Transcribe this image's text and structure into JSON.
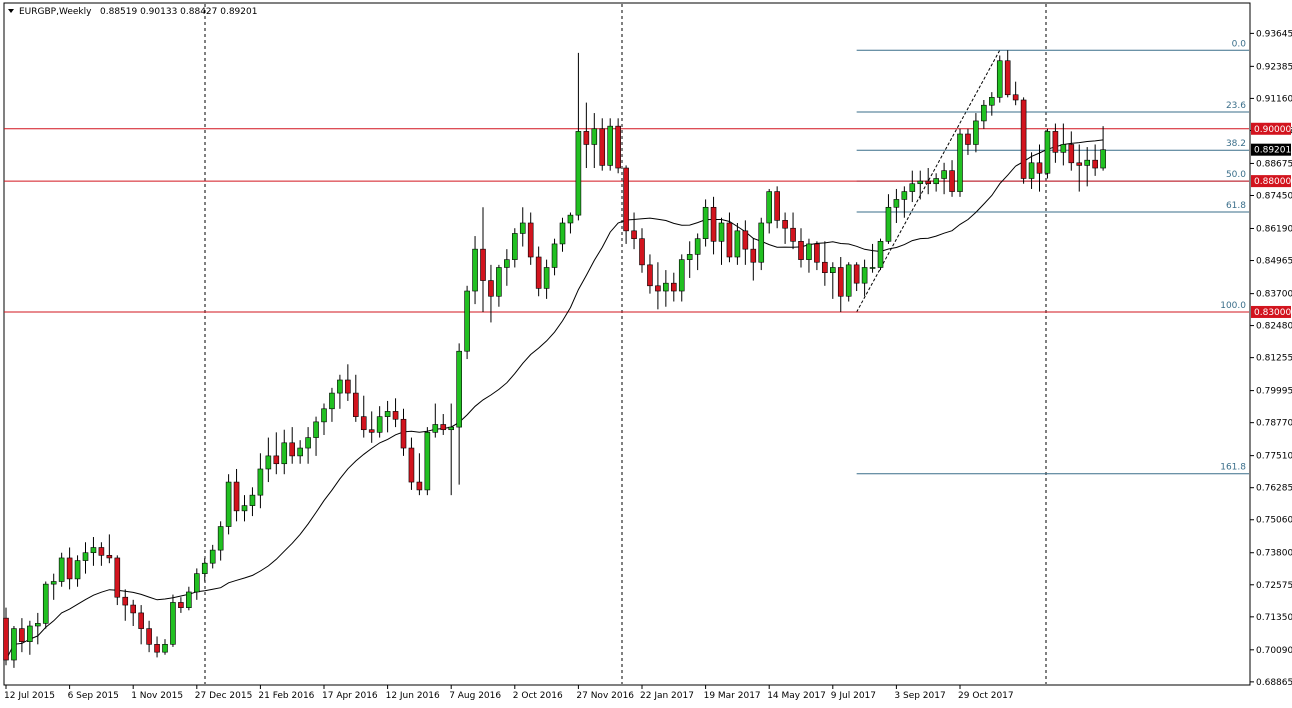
{
  "header": {
    "symbol": "EURGBP,Weekly",
    "ohlc": "0.88519 0.90133 0.88427 0.89201"
  },
  "colors": {
    "bull": "#21c021",
    "bear": "#d2141e",
    "wick": "#000000",
    "hline": "#d2141e",
    "fib": "#3a6e8a",
    "ma": "#000000"
  },
  "chart_data": {
    "type": "candlestick",
    "symbol": "EURGBP",
    "timeframe": "Weekly",
    "ylim": [
      0.6886,
      0.9408
    ],
    "y_ticks": [
      "0.93645",
      "0.92385",
      "0.91160",
      "0.89935",
      "0.88675",
      "0.87450",
      "0.86190",
      "0.84965",
      "0.83700",
      "0.82480",
      "0.81255",
      "0.79995",
      "0.78770",
      "0.77510",
      "0.76285",
      "0.75060",
      "0.73800",
      "0.72575",
      "0.71350",
      "0.70090",
      "0.68865"
    ],
    "x_ticks": [
      "12 Jul 2015",
      "6 Sep 2015",
      "1 Nov 2015",
      "27 Dec 2015",
      "21 Feb 2016",
      "17 Apr 2016",
      "12 Jun 2016",
      "7 Aug 2016",
      "2 Oct 2016",
      "27 Nov 2016",
      "22 Jan 2017",
      "19 Mar 2017",
      "14 May 2017",
      "9 Jul 2017",
      "3 Sep 2017",
      "29 Oct 2017"
    ],
    "horizontal_levels": [
      {
        "price": 0.9,
        "label": "0.90000"
      },
      {
        "price": 0.88,
        "label": "0.88000"
      },
      {
        "price": 0.83,
        "label": "0.83000"
      }
    ],
    "current_price": {
      "price": 0.89201,
      "label": "0.89201"
    },
    "fibonacci": {
      "start": {
        "bar": 107,
        "price": 0.83
      },
      "end": {
        "bar": 125,
        "price": 0.93
      },
      "levels": [
        {
          "ratio": 0.0,
          "label": "0.0"
        },
        {
          "ratio": 0.236,
          "label": "23.6"
        },
        {
          "ratio": 0.382,
          "label": "38.2"
        },
        {
          "ratio": 0.5,
          "label": "50.0"
        },
        {
          "ratio": 0.618,
          "label": "61.8"
        },
        {
          "ratio": 1.0,
          "label": "100.0"
        },
        {
          "ratio": 1.618,
          "label": "161.8"
        }
      ]
    },
    "ma": {
      "period": 20
    },
    "candles": [
      {
        "o": 0.713,
        "h": 0.717,
        "l": 0.695,
        "c": 0.697
      },
      {
        "o": 0.697,
        "h": 0.71,
        "l": 0.694,
        "c": 0.709
      },
      {
        "o": 0.709,
        "h": 0.713,
        "l": 0.7,
        "c": 0.704
      },
      {
        "o": 0.704,
        "h": 0.712,
        "l": 0.699,
        "c": 0.71
      },
      {
        "o": 0.71,
        "h": 0.715,
        "l": 0.703,
        "c": 0.711
      },
      {
        "o": 0.711,
        "h": 0.727,
        "l": 0.709,
        "c": 0.726
      },
      {
        "o": 0.726,
        "h": 0.73,
        "l": 0.72,
        "c": 0.727
      },
      {
        "o": 0.727,
        "h": 0.738,
        "l": 0.725,
        "c": 0.736
      },
      {
        "o": 0.736,
        "h": 0.74,
        "l": 0.724,
        "c": 0.728
      },
      {
        "o": 0.728,
        "h": 0.737,
        "l": 0.725,
        "c": 0.735
      },
      {
        "o": 0.735,
        "h": 0.742,
        "l": 0.73,
        "c": 0.738
      },
      {
        "o": 0.738,
        "h": 0.744,
        "l": 0.733,
        "c": 0.74
      },
      {
        "o": 0.74,
        "h": 0.742,
        "l": 0.733,
        "c": 0.737
      },
      {
        "o": 0.737,
        "h": 0.745,
        "l": 0.734,
        "c": 0.736
      },
      {
        "o": 0.736,
        "h": 0.737,
        "l": 0.718,
        "c": 0.721
      },
      {
        "o": 0.721,
        "h": 0.724,
        "l": 0.712,
        "c": 0.718
      },
      {
        "o": 0.718,
        "h": 0.72,
        "l": 0.71,
        "c": 0.715
      },
      {
        "o": 0.715,
        "h": 0.718,
        "l": 0.703,
        "c": 0.709
      },
      {
        "o": 0.709,
        "h": 0.712,
        "l": 0.7,
        "c": 0.703
      },
      {
        "o": 0.703,
        "h": 0.706,
        "l": 0.698,
        "c": 0.7
      },
      {
        "o": 0.7,
        "h": 0.705,
        "l": 0.699,
        "c": 0.703
      },
      {
        "o": 0.703,
        "h": 0.722,
        "l": 0.702,
        "c": 0.719
      },
      {
        "o": 0.719,
        "h": 0.721,
        "l": 0.715,
        "c": 0.717
      },
      {
        "o": 0.717,
        "h": 0.725,
        "l": 0.716,
        "c": 0.723
      },
      {
        "o": 0.723,
        "h": 0.732,
        "l": 0.72,
        "c": 0.73
      },
      {
        "o": 0.73,
        "h": 0.736,
        "l": 0.727,
        "c": 0.734
      },
      {
        "o": 0.734,
        "h": 0.741,
        "l": 0.732,
        "c": 0.739
      },
      {
        "o": 0.739,
        "h": 0.75,
        "l": 0.735,
        "c": 0.748
      },
      {
        "o": 0.748,
        "h": 0.768,
        "l": 0.745,
        "c": 0.765
      },
      {
        "o": 0.765,
        "h": 0.77,
        "l": 0.75,
        "c": 0.754
      },
      {
        "o": 0.754,
        "h": 0.76,
        "l": 0.75,
        "c": 0.756
      },
      {
        "o": 0.756,
        "h": 0.763,
        "l": 0.752,
        "c": 0.76
      },
      {
        "o": 0.76,
        "h": 0.776,
        "l": 0.755,
        "c": 0.77
      },
      {
        "o": 0.77,
        "h": 0.782,
        "l": 0.765,
        "c": 0.775
      },
      {
        "o": 0.775,
        "h": 0.784,
        "l": 0.768,
        "c": 0.772
      },
      {
        "o": 0.772,
        "h": 0.785,
        "l": 0.768,
        "c": 0.78
      },
      {
        "o": 0.78,
        "h": 0.786,
        "l": 0.772,
        "c": 0.775
      },
      {
        "o": 0.775,
        "h": 0.781,
        "l": 0.772,
        "c": 0.778
      },
      {
        "o": 0.778,
        "h": 0.786,
        "l": 0.772,
        "c": 0.782
      },
      {
        "o": 0.782,
        "h": 0.79,
        "l": 0.775,
        "c": 0.788
      },
      {
        "o": 0.788,
        "h": 0.795,
        "l": 0.783,
        "c": 0.793
      },
      {
        "o": 0.793,
        "h": 0.801,
        "l": 0.788,
        "c": 0.799
      },
      {
        "o": 0.799,
        "h": 0.806,
        "l": 0.793,
        "c": 0.804
      },
      {
        "o": 0.804,
        "h": 0.81,
        "l": 0.796,
        "c": 0.799
      },
      {
        "o": 0.799,
        "h": 0.806,
        "l": 0.788,
        "c": 0.79
      },
      {
        "o": 0.79,
        "h": 0.798,
        "l": 0.782,
        "c": 0.785
      },
      {
        "o": 0.785,
        "h": 0.792,
        "l": 0.78,
        "c": 0.784
      },
      {
        "o": 0.784,
        "h": 0.794,
        "l": 0.782,
        "c": 0.79
      },
      {
        "o": 0.79,
        "h": 0.796,
        "l": 0.784,
        "c": 0.792
      },
      {
        "o": 0.792,
        "h": 0.797,
        "l": 0.786,
        "c": 0.789
      },
      {
        "o": 0.789,
        "h": 0.793,
        "l": 0.775,
        "c": 0.778
      },
      {
        "o": 0.778,
        "h": 0.782,
        "l": 0.762,
        "c": 0.765
      },
      {
        "o": 0.765,
        "h": 0.776,
        "l": 0.76,
        "c": 0.762
      },
      {
        "o": 0.762,
        "h": 0.786,
        "l": 0.76,
        "c": 0.784
      },
      {
        "o": 0.784,
        "h": 0.795,
        "l": 0.782,
        "c": 0.787
      },
      {
        "o": 0.787,
        "h": 0.791,
        "l": 0.783,
        "c": 0.785
      },
      {
        "o": 0.785,
        "h": 0.795,
        "l": 0.76,
        "c": 0.786
      },
      {
        "o": 0.786,
        "h": 0.818,
        "l": 0.764,
        "c": 0.815
      },
      {
        "o": 0.815,
        "h": 0.84,
        "l": 0.812,
        "c": 0.838
      },
      {
        "o": 0.838,
        "h": 0.859,
        "l": 0.833,
        "c": 0.854
      },
      {
        "o": 0.854,
        "h": 0.87,
        "l": 0.83,
        "c": 0.842
      },
      {
        "o": 0.842,
        "h": 0.848,
        "l": 0.826,
        "c": 0.836
      },
      {
        "o": 0.836,
        "h": 0.848,
        "l": 0.832,
        "c": 0.847
      },
      {
        "o": 0.847,
        "h": 0.854,
        "l": 0.84,
        "c": 0.85
      },
      {
        "o": 0.85,
        "h": 0.862,
        "l": 0.847,
        "c": 0.86
      },
      {
        "o": 0.86,
        "h": 0.87,
        "l": 0.855,
        "c": 0.864
      },
      {
        "o": 0.864,
        "h": 0.868,
        "l": 0.848,
        "c": 0.851
      },
      {
        "o": 0.851,
        "h": 0.855,
        "l": 0.836,
        "c": 0.839
      },
      {
        "o": 0.839,
        "h": 0.85,
        "l": 0.835,
        "c": 0.847
      },
      {
        "o": 0.847,
        "h": 0.858,
        "l": 0.844,
        "c": 0.856
      },
      {
        "o": 0.856,
        "h": 0.866,
        "l": 0.853,
        "c": 0.864
      },
      {
        "o": 0.864,
        "h": 0.868,
        "l": 0.86,
        "c": 0.867
      },
      {
        "o": 0.867,
        "h": 0.929,
        "l": 0.865,
        "c": 0.899
      },
      {
        "o": 0.899,
        "h": 0.91,
        "l": 0.885,
        "c": 0.894
      },
      {
        "o": 0.894,
        "h": 0.906,
        "l": 0.885,
        "c": 0.9
      },
      {
        "o": 0.9,
        "h": 0.904,
        "l": 0.884,
        "c": 0.886
      },
      {
        "o": 0.886,
        "h": 0.904,
        "l": 0.884,
        "c": 0.901
      },
      {
        "o": 0.901,
        "h": 0.904,
        "l": 0.883,
        "c": 0.885
      },
      {
        "o": 0.885,
        "h": 0.886,
        "l": 0.856,
        "c": 0.861
      },
      {
        "o": 0.861,
        "h": 0.868,
        "l": 0.854,
        "c": 0.858
      },
      {
        "o": 0.858,
        "h": 0.862,
        "l": 0.845,
        "c": 0.848
      },
      {
        "o": 0.848,
        "h": 0.852,
        "l": 0.837,
        "c": 0.84
      },
      {
        "o": 0.84,
        "h": 0.849,
        "l": 0.831,
        "c": 0.838
      },
      {
        "o": 0.838,
        "h": 0.846,
        "l": 0.832,
        "c": 0.841
      },
      {
        "o": 0.841,
        "h": 0.845,
        "l": 0.834,
        "c": 0.838
      },
      {
        "o": 0.838,
        "h": 0.852,
        "l": 0.834,
        "c": 0.85
      },
      {
        "o": 0.85,
        "h": 0.857,
        "l": 0.843,
        "c": 0.852
      },
      {
        "o": 0.852,
        "h": 0.86,
        "l": 0.846,
        "c": 0.858
      },
      {
        "o": 0.858,
        "h": 0.873,
        "l": 0.855,
        "c": 0.87
      },
      {
        "o": 0.87,
        "h": 0.874,
        "l": 0.852,
        "c": 0.857
      },
      {
        "o": 0.857,
        "h": 0.866,
        "l": 0.848,
        "c": 0.864
      },
      {
        "o": 0.864,
        "h": 0.868,
        "l": 0.849,
        "c": 0.851
      },
      {
        "o": 0.851,
        "h": 0.864,
        "l": 0.848,
        "c": 0.861
      },
      {
        "o": 0.861,
        "h": 0.865,
        "l": 0.848,
        "c": 0.854
      },
      {
        "o": 0.854,
        "h": 0.858,
        "l": 0.842,
        "c": 0.849
      },
      {
        "o": 0.849,
        "h": 0.866,
        "l": 0.846,
        "c": 0.864
      },
      {
        "o": 0.864,
        "h": 0.877,
        "l": 0.86,
        "c": 0.876
      },
      {
        "o": 0.876,
        "h": 0.878,
        "l": 0.862,
        "c": 0.865
      },
      {
        "o": 0.865,
        "h": 0.868,
        "l": 0.856,
        "c": 0.862
      },
      {
        "o": 0.862,
        "h": 0.868,
        "l": 0.854,
        "c": 0.857
      },
      {
        "o": 0.857,
        "h": 0.862,
        "l": 0.847,
        "c": 0.85
      },
      {
        "o": 0.85,
        "h": 0.858,
        "l": 0.845,
        "c": 0.856
      },
      {
        "o": 0.856,
        "h": 0.857,
        "l": 0.846,
        "c": 0.849
      },
      {
        "o": 0.849,
        "h": 0.857,
        "l": 0.84,
        "c": 0.845
      },
      {
        "o": 0.845,
        "h": 0.849,
        "l": 0.835,
        "c": 0.847
      },
      {
        "o": 0.847,
        "h": 0.851,
        "l": 0.83,
        "c": 0.836
      },
      {
        "o": 0.836,
        "h": 0.849,
        "l": 0.834,
        "c": 0.848
      },
      {
        "o": 0.848,
        "h": 0.849,
        "l": 0.838,
        "c": 0.841
      },
      {
        "o": 0.841,
        "h": 0.85,
        "l": 0.836,
        "c": 0.847
      },
      {
        "o": 0.847,
        "h": 0.856,
        "l": 0.845,
        "c": 0.847
      },
      {
        "o": 0.847,
        "h": 0.858,
        "l": 0.846,
        "c": 0.857
      },
      {
        "o": 0.857,
        "h": 0.875,
        "l": 0.856,
        "c": 0.87
      },
      {
        "o": 0.87,
        "h": 0.877,
        "l": 0.864,
        "c": 0.873
      },
      {
        "o": 0.873,
        "h": 0.878,
        "l": 0.866,
        "c": 0.876
      },
      {
        "o": 0.876,
        "h": 0.884,
        "l": 0.872,
        "c": 0.879
      },
      {
        "o": 0.879,
        "h": 0.884,
        "l": 0.873,
        "c": 0.88
      },
      {
        "o": 0.88,
        "h": 0.885,
        "l": 0.875,
        "c": 0.879
      },
      {
        "o": 0.879,
        "h": 0.883,
        "l": 0.876,
        "c": 0.881
      },
      {
        "o": 0.881,
        "h": 0.887,
        "l": 0.875,
        "c": 0.884
      },
      {
        "o": 0.884,
        "h": 0.888,
        "l": 0.874,
        "c": 0.876
      },
      {
        "o": 0.876,
        "h": 0.9,
        "l": 0.874,
        "c": 0.898
      },
      {
        "o": 0.898,
        "h": 0.9,
        "l": 0.89,
        "c": 0.894
      },
      {
        "o": 0.894,
        "h": 0.906,
        "l": 0.891,
        "c": 0.903
      },
      {
        "o": 0.903,
        "h": 0.911,
        "l": 0.9,
        "c": 0.909
      },
      {
        "o": 0.909,
        "h": 0.914,
        "l": 0.905,
        "c": 0.912
      },
      {
        "o": 0.912,
        "h": 0.928,
        "l": 0.91,
        "c": 0.926
      },
      {
        "o": 0.926,
        "h": 0.93,
        "l": 0.912,
        "c": 0.913
      },
      {
        "o": 0.913,
        "h": 0.918,
        "l": 0.909,
        "c": 0.911
      },
      {
        "o": 0.911,
        "h": 0.912,
        "l": 0.879,
        "c": 0.881
      },
      {
        "o": 0.881,
        "h": 0.891,
        "l": 0.877,
        "c": 0.887
      },
      {
        "o": 0.887,
        "h": 0.894,
        "l": 0.876,
        "c": 0.883
      },
      {
        "o": 0.883,
        "h": 0.9,
        "l": 0.881,
        "c": 0.899
      },
      {
        "o": 0.899,
        "h": 0.902,
        "l": 0.887,
        "c": 0.891
      },
      {
        "o": 0.891,
        "h": 0.902,
        "l": 0.886,
        "c": 0.894
      },
      {
        "o": 0.894,
        "h": 0.899,
        "l": 0.884,
        "c": 0.887
      },
      {
        "o": 0.887,
        "h": 0.894,
        "l": 0.876,
        "c": 0.886
      },
      {
        "o": 0.886,
        "h": 0.893,
        "l": 0.878,
        "c": 0.888
      },
      {
        "o": 0.888,
        "h": 0.894,
        "l": 0.882,
        "c": 0.885
      },
      {
        "o": 0.885,
        "h": 0.901,
        "l": 0.884,
        "c": 0.892
      }
    ]
  }
}
